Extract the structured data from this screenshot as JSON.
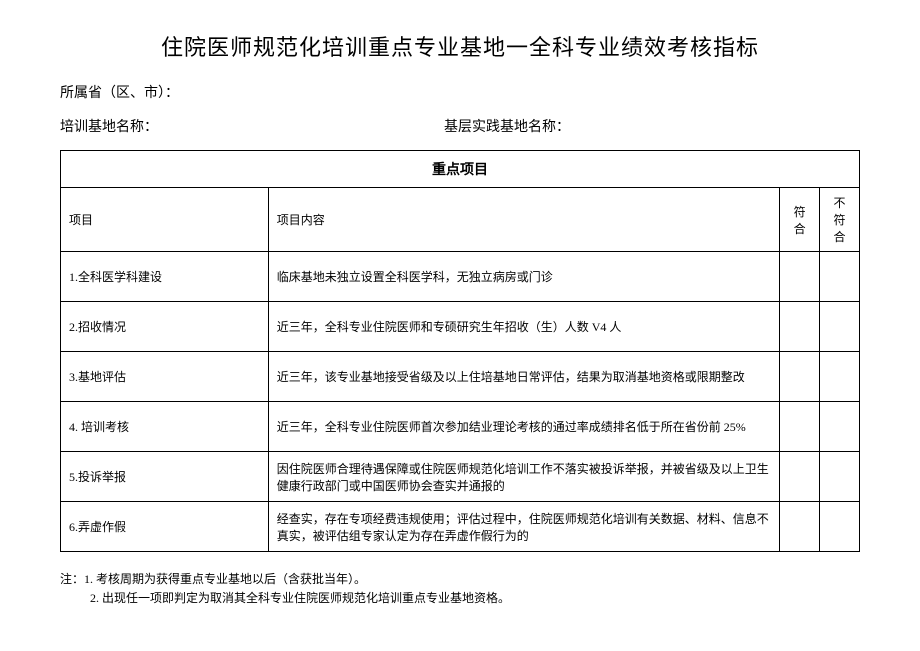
{
  "title": "住院医师规范化培训重点专业基地一全科专业绩效考核指标",
  "meta": {
    "region_label": "所属省（区、市）：",
    "base_name_label": "培训基地名称：",
    "practice_base_label": "基层实践基地名称："
  },
  "table": {
    "section_header": "重点项目",
    "columns": {
      "project": "项目",
      "content": "项目内容",
      "pass": "符合",
      "fail": "不符合"
    },
    "rows": [
      {
        "project": "1.全科医学科建设",
        "content": "临床基地未独立设置全科医学科，无独立病房或门诊"
      },
      {
        "project": "2.招收情况",
        "content": "近三年，全科专业住院医师和专硕研究生年招收（生）人数 V4 人"
      },
      {
        "project": "3.基地评估",
        "content": "近三年，该专业基地接受省级及以上住培基地日常评估，结果为取消基地资格或限期整改"
      },
      {
        "project": "4. 培训考核",
        "content": "近三年，全科专业住院医师首次参加结业理论考核的通过率成绩排名低于所在省份前 25%"
      },
      {
        "project": "5.投诉举报",
        "content": "因住院医师合理待遇保障或住院医师规范化培训工作不落实被投诉举报，并被省级及以上卫生健康行政部门或中国医师协会查实并通报的"
      },
      {
        "project": "6.弄虚作假",
        "content": "经查实，存在专项经费违规使用；评估过程中，住院医师规范化培训有关数据、材料、信息不真实，被评估组专家认定为存在弄虚作假行为的"
      }
    ]
  },
  "notes": {
    "line1": "注：1. 考核周期为获得重点专业基地以后（含获批当年）。",
    "line2": "2. 出现任一项即判定为取消其全科专业住院医师规范化培训重点专业基地资格。"
  },
  "style": {
    "background_color": "#ffffff",
    "text_color": "#000000",
    "border_color": "#000000",
    "title_fontsize": 22,
    "body_fontsize": 13,
    "table_fontsize": 12
  }
}
